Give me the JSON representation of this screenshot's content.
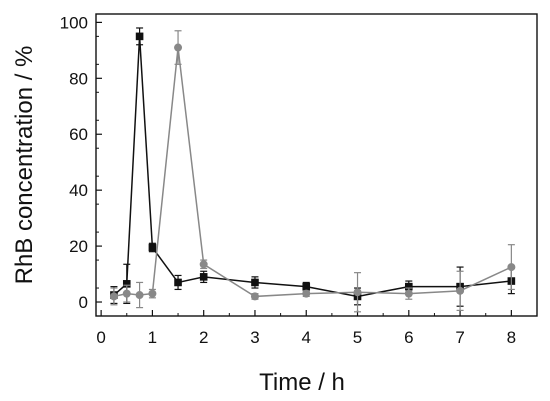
{
  "chart_data": {
    "type": "line",
    "xlabel": "Time / h",
    "ylabel": "RhB concentration / %",
    "xlim": [
      -0.1,
      8.5
    ],
    "ylim": [
      -5,
      103
    ],
    "xticks": [
      0,
      1,
      2,
      3,
      4,
      5,
      6,
      7,
      8
    ],
    "yticks": [
      0,
      20,
      40,
      60,
      80,
      100
    ],
    "grid": false,
    "legend": "none",
    "series": [
      {
        "color": "#111111",
        "marker": "square",
        "x": [
          0.25,
          0.5,
          0.75,
          1.0,
          1.5,
          2.0,
          3.0,
          4.0,
          5.0,
          6.0,
          7.0,
          8.0
        ],
        "y": [
          2.5,
          6.5,
          95,
          19.5,
          7,
          9,
          7,
          5.5,
          2,
          5.5,
          5.5,
          7.5
        ],
        "err": [
          3,
          7,
          3,
          1.5,
          2.5,
          2,
          2,
          1.5,
          3,
          2,
          7,
          4.5
        ]
      },
      {
        "color": "#888888",
        "marker": "circle",
        "x": [
          0.25,
          0.5,
          0.75,
          1.0,
          1.5,
          2.0,
          3.0,
          4.0,
          5.0,
          6.0,
          7.0,
          8.0
        ],
        "y": [
          2,
          3,
          2.5,
          3,
          91,
          13.5,
          2,
          3,
          3.5,
          3,
          4,
          12.5
        ],
        "err": [
          3,
          3,
          4.5,
          1.5,
          6,
          1.5,
          1,
          1,
          7,
          2,
          7,
          8
        ]
      }
    ]
  }
}
